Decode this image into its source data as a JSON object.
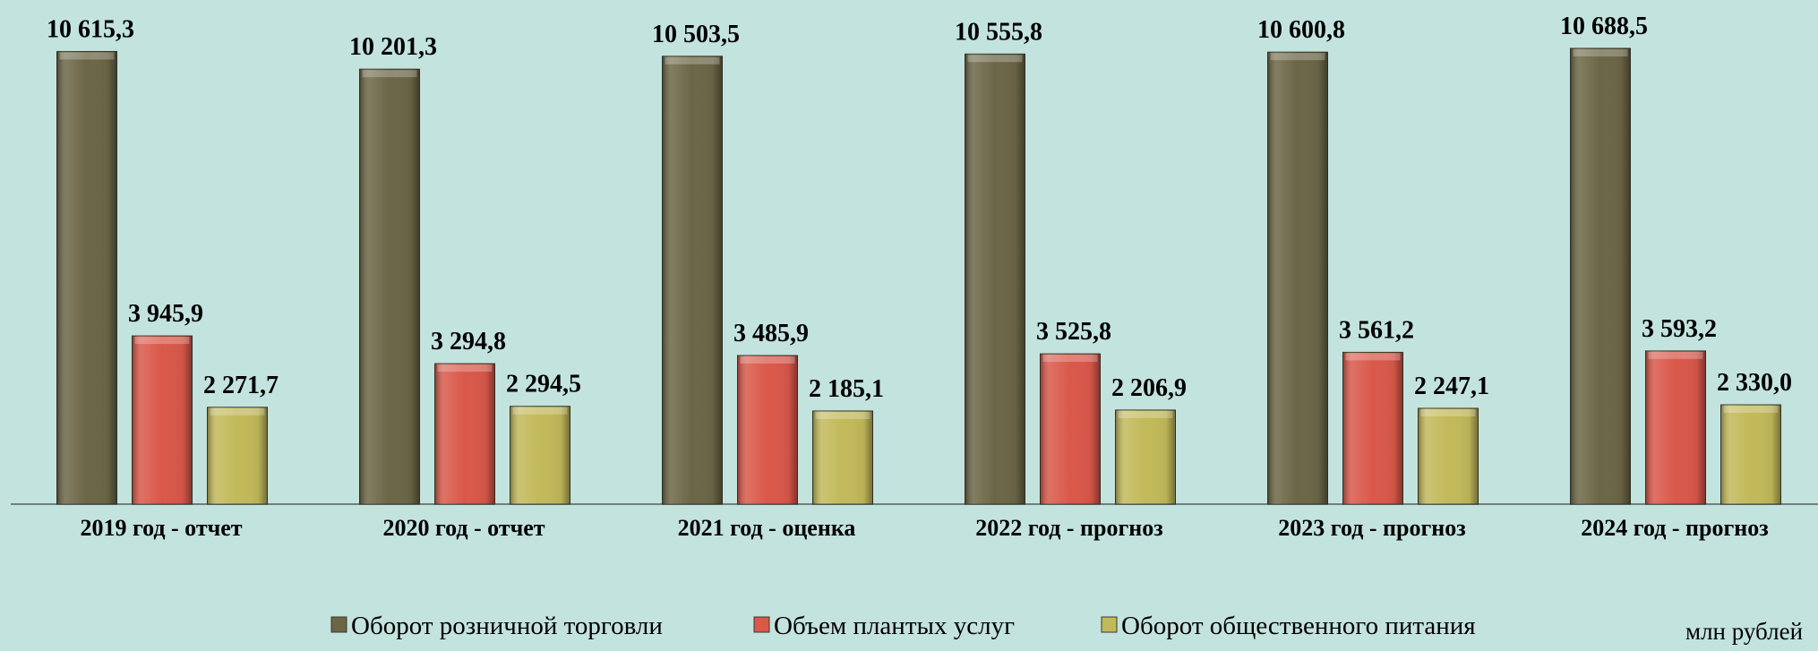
{
  "chart_data": {
    "type": "bar",
    "categories": [
      "2019 год - отчет",
      "2020 год - отчет",
      "2021 год - оценка",
      "2022 год - прогноз",
      "2023 год - прогноз",
      "2024 год - прогноз"
    ],
    "series": [
      {
        "name": "Оборот розничной торговли",
        "color": "#6b6646",
        "values": [
          10615.3,
          10201.3,
          10503.5,
          10555.8,
          10600.8,
          10688.5
        ],
        "value_labels": [
          "10 615,3",
          "10 201,3",
          "10 503,5",
          "10 555,8",
          "10 600,8",
          "10 688,5"
        ]
      },
      {
        "name": "Объем плантых услуг",
        "color": "#d9584a",
        "values": [
          3945.9,
          3294.8,
          3485.9,
          3525.8,
          3561.2,
          3593.2
        ],
        "value_labels": [
          "3 945,9",
          "3 294,8",
          "3 485,9",
          "3 525,8",
          "3 561,2",
          "3 593,2"
        ]
      },
      {
        "name": "Оборот общественного питания",
        "color": "#c2b95a",
        "values": [
          2271.7,
          2294.5,
          2185.1,
          2206.9,
          2247.1,
          2330.0
        ],
        "value_labels": [
          "2 271,7",
          "2 294,5",
          "2 185,1",
          "2 206,9",
          "2 247,1",
          "2 330,0"
        ]
      }
    ],
    "unit_label": "млн рублей",
    "legend": "bottom"
  }
}
